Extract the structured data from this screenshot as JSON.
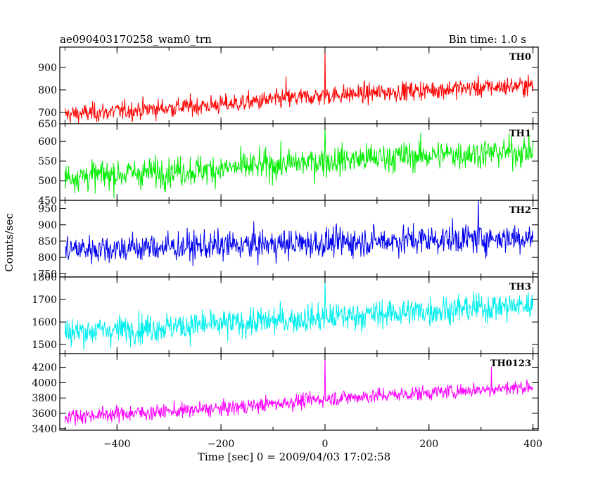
{
  "header": {
    "title": "ae090403170258_wam0_trn",
    "bin_time": "Bin time: 1.0 s"
  },
  "chart_data": {
    "type": "line",
    "xlabel": "Time [sec] 0 = 2009/04/03 17:02:58",
    "ylabel": "Counts/sec",
    "xlim": [
      -510,
      410
    ],
    "xticks": [
      -400,
      -200,
      0,
      200,
      400
    ],
    "xtick_labels": [
      "−400",
      "−200",
      "0",
      "200",
      "400"
    ],
    "x_range": [
      -500,
      400
    ],
    "grid": false,
    "panels": [
      {
        "name": "TH0",
        "color": "#ff0000",
        "ylim": [
          650,
          990
        ],
        "yticks": [
          650,
          700,
          800,
          900
        ],
        "ytick_labels": [
          "650",
          "700",
          "800",
          "900"
        ],
        "trend": [
          [
            -500,
            690
          ],
          [
            -200,
            735
          ],
          [
            0,
            775
          ],
          [
            200,
            800
          ],
          [
            400,
            820
          ]
        ],
        "noise": 30,
        "spikes": [
          [
            0,
            990
          ],
          [
            -75,
            860
          ]
        ]
      },
      {
        "name": "TH1",
        "color": "#00ee00",
        "ylim": [
          450,
          645
        ],
        "yticks": [
          450,
          500,
          550,
          600,
          650
        ],
        "ytick_labels": [
          "450",
          "500",
          "550",
          "600",
          "650"
        ],
        "trend": [
          [
            -500,
            510
          ],
          [
            -200,
            530
          ],
          [
            0,
            550
          ],
          [
            200,
            565
          ],
          [
            400,
            575
          ]
        ],
        "noise": 27,
        "spikes": [
          [
            0,
            640
          ]
        ]
      },
      {
        "name": "TH2",
        "color": "#0000ee",
        "ylim": [
          740,
          975
        ],
        "yticks": [
          750,
          800,
          850,
          900,
          950
        ],
        "ytick_labels": [
          "750",
          "800",
          "850",
          "900",
          "950"
        ],
        "trend": [
          [
            -500,
            825
          ],
          [
            -200,
            835
          ],
          [
            0,
            845
          ],
          [
            200,
            855
          ],
          [
            400,
            862
          ]
        ],
        "noise": 32,
        "spikes": [
          [
            295,
            980
          ]
        ]
      },
      {
        "name": "TH3",
        "color": "#00eeee",
        "ylim": [
          1460,
          1800
        ],
        "yticks": [
          1500,
          1600,
          1700,
          1800
        ],
        "ytick_labels": [
          "1500",
          "1600",
          "1700",
          "1800"
        ],
        "trend": [
          [
            -500,
            1555
          ],
          [
            -200,
            1590
          ],
          [
            0,
            1620
          ],
          [
            200,
            1650
          ],
          [
            400,
            1675
          ]
        ],
        "noise": 45,
        "spikes": [
          [
            0,
            1790
          ]
        ]
      },
      {
        "name": "TH0123",
        "color": "#ff00ff",
        "ylim": [
          3380,
          4380
        ],
        "yticks": [
          3400,
          3600,
          3800,
          4000,
          4200
        ],
        "ytick_labels": [
          "3400",
          "3600",
          "3800",
          "4000",
          "4200"
        ],
        "trend": [
          [
            -500,
            3560
          ],
          [
            -200,
            3660
          ],
          [
            0,
            3790
          ],
          [
            200,
            3870
          ],
          [
            400,
            3950
          ]
        ],
        "noise": 70,
        "spikes": [
          [
            0,
            4380
          ],
          [
            320,
            4210
          ]
        ]
      }
    ]
  }
}
